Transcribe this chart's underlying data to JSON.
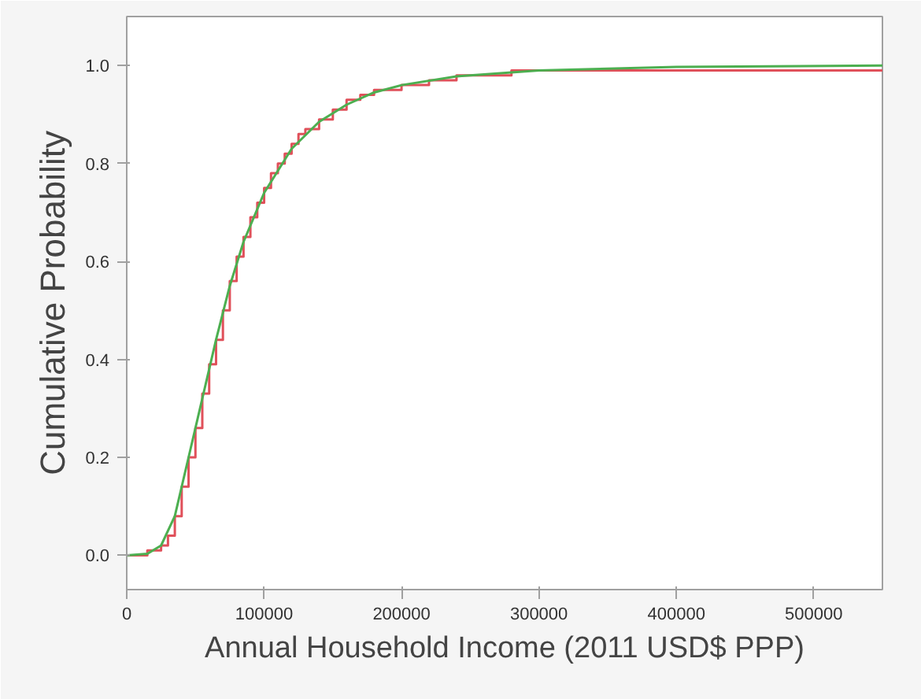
{
  "chart_data": {
    "type": "line",
    "xlabel": "Annual Household Income (2011 USD$ PPP)",
    "ylabel": "Cumulative Probability",
    "xlim": [
      0,
      550000
    ],
    "ylim": [
      -0.07,
      1.1
    ],
    "xticks": [
      0,
      100000,
      200000,
      300000,
      400000,
      500000
    ],
    "yticks": [
      {
        "value": 0,
        "label": "0.0"
      },
      0.2,
      0.4,
      0.6,
      0.8,
      {
        "value": 1,
        "label": "1.0"
      }
    ],
    "line_style": "solid",
    "series": [
      {
        "type": "step",
        "color": "#e0505a",
        "x": [
          0,
          15000,
          25000,
          30000,
          35000,
          40000,
          45000,
          50000,
          55000,
          60000,
          65000,
          70000,
          75000,
          80000,
          85000,
          90000,
          95000,
          100000,
          105000,
          110000,
          115000,
          120000,
          125000,
          130000,
          140000,
          150000,
          160000,
          170000,
          180000,
          200000,
          220000,
          240000,
          280000,
          550000
        ],
        "values": [
          0,
          0.01,
          0.02,
          0.04,
          0.08,
          0.14,
          0.2,
          0.26,
          0.33,
          0.39,
          0.44,
          0.5,
          0.56,
          0.61,
          0.65,
          0.69,
          0.72,
          0.75,
          0.78,
          0.8,
          0.82,
          0.84,
          0.86,
          0.87,
          0.89,
          0.91,
          0.93,
          0.94,
          0.95,
          0.96,
          0.97,
          0.98,
          0.99,
          0.99
        ]
      },
      {
        "color": "#4caf50",
        "x": [
          0,
          15000,
          25000,
          35000,
          45000,
          55000,
          65000,
          75000,
          85000,
          100000,
          120000,
          140000,
          160000,
          180000,
          200000,
          240000,
          300000,
          400000,
          550000
        ],
        "values": [
          0,
          0.003,
          0.02,
          0.08,
          0.2,
          0.32,
          0.44,
          0.55,
          0.64,
          0.74,
          0.83,
          0.885,
          0.92,
          0.945,
          0.96,
          0.978,
          0.99,
          0.997,
          1.0
        ]
      }
    ]
  }
}
